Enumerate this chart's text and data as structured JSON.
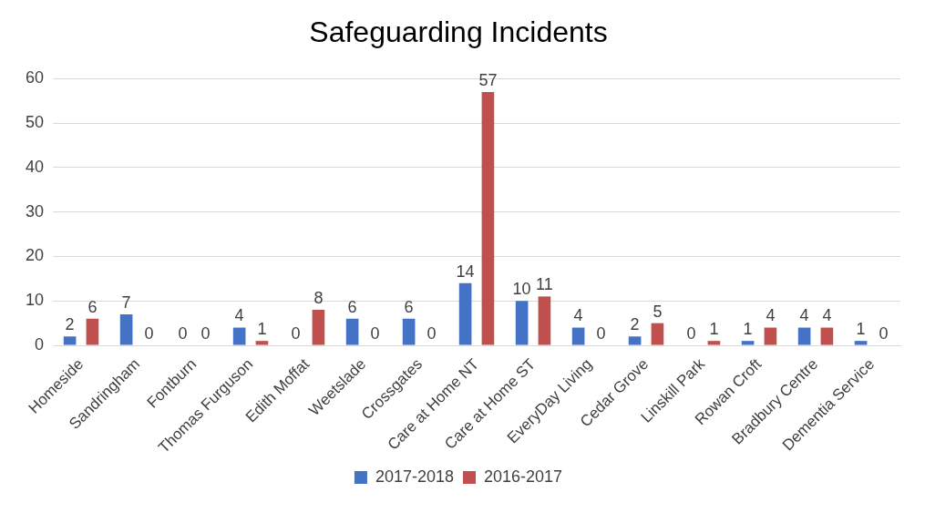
{
  "chart_data": {
    "type": "bar",
    "title": "Safeguarding Incidents",
    "categories": [
      "Homeside",
      "Sandringham",
      "Fontburn",
      "Thomas Furguson",
      "Edith Moffat",
      "Weetslade",
      "Crossgates",
      "Care at Home NT",
      "Care at Home ST",
      "EveryDay Living",
      "Cedar Grove",
      "Linskill Park",
      "Rowan Croft",
      "Bradbury Centre",
      "Dementia Service"
    ],
    "series": [
      {
        "name": "2017-2018",
        "color": "#4472c4",
        "values": [
          2,
          7,
          0,
          4,
          0,
          6,
          6,
          14,
          10,
          4,
          2,
          0,
          1,
          4,
          1
        ]
      },
      {
        "name": "2016-2017",
        "color": "#c0504d",
        "values": [
          6,
          0,
          0,
          1,
          8,
          0,
          0,
          57,
          11,
          0,
          5,
          1,
          4,
          4,
          0
        ]
      }
    ],
    "ylim": [
      0,
      60
    ],
    "yticks": [
      0,
      10,
      20,
      30,
      40,
      50,
      60
    ],
    "grid": "y",
    "legend": "bottom",
    "data_labels": true
  }
}
